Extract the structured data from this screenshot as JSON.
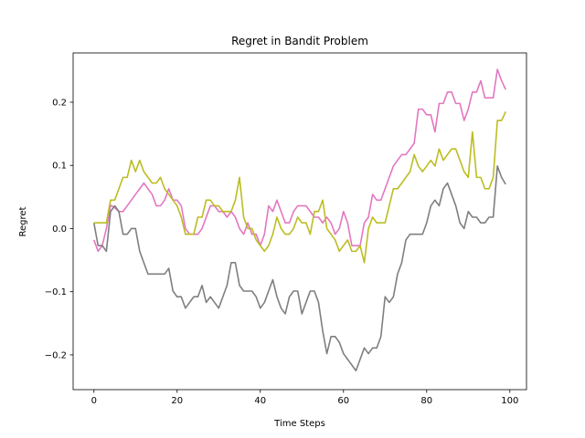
{
  "chart_data": {
    "type": "line",
    "title": "Regret in Bandit Problem",
    "xlabel": "Time Steps",
    "ylabel": "Regret",
    "xlim": [
      -5,
      104
    ],
    "ylim": [
      -0.255,
      0.278
    ],
    "xticks": [
      0,
      20,
      40,
      60,
      80,
      100
    ],
    "yticks": [
      -0.2,
      -0.1,
      0.0,
      0.1,
      0.2
    ],
    "ytick_labels": [
      "−0.2",
      "−0.1",
      "0.0",
      "0.1",
      "0.2"
    ],
    "grid": false,
    "legend": "none",
    "series": [
      {
        "color": "#e377c2",
        "values": [
          -0.018,
          -0.036,
          -0.027,
          0.0,
          0.037,
          0.033,
          0.027,
          0.027,
          0.036,
          0.045,
          0.054,
          0.063,
          0.072,
          0.063,
          0.054,
          0.036,
          0.036,
          0.045,
          0.063,
          0.045,
          0.045,
          0.036,
          0.0,
          -0.009,
          -0.009,
          -0.009,
          0.0,
          0.018,
          0.036,
          0.036,
          0.027,
          0.027,
          0.018,
          0.027,
          0.018,
          0.0,
          -0.009,
          0.009,
          -0.009,
          -0.009,
          -0.027,
          -0.009,
          0.036,
          0.027,
          0.045,
          0.027,
          0.009,
          0.009,
          0.027,
          0.036,
          0.036,
          0.036,
          0.027,
          0.018,
          0.018,
          0.009,
          0.018,
          0.009,
          -0.009,
          0.0,
          0.027,
          0.009,
          -0.027,
          -0.027,
          -0.027,
          0.009,
          0.018,
          0.054,
          0.045,
          0.045,
          0.063,
          0.081,
          0.099,
          0.108,
          0.117,
          0.117,
          0.126,
          0.135,
          0.189,
          0.189,
          0.18,
          0.18,
          0.153,
          0.198,
          0.198,
          0.216,
          0.216,
          0.198,
          0.198,
          0.171,
          0.189,
          0.216,
          0.216,
          0.234,
          0.207,
          0.207,
          0.207,
          0.252,
          0.234,
          0.22
        ]
      },
      {
        "color": "#7f7f7f",
        "values": [
          0.009,
          -0.027,
          -0.027,
          -0.036,
          0.027,
          0.036,
          0.027,
          -0.009,
          -0.009,
          0.0,
          0.0,
          -0.036,
          -0.054,
          -0.072,
          -0.072,
          -0.072,
          -0.072,
          -0.072,
          -0.063,
          -0.099,
          -0.108,
          -0.108,
          -0.126,
          -0.117,
          -0.108,
          -0.108,
          -0.09,
          -0.117,
          -0.108,
          -0.117,
          -0.126,
          -0.108,
          -0.09,
          -0.054,
          -0.054,
          -0.09,
          -0.099,
          -0.099,
          -0.099,
          -0.108,
          -0.126,
          -0.117,
          -0.099,
          -0.081,
          -0.108,
          -0.126,
          -0.135,
          -0.108,
          -0.099,
          -0.099,
          -0.135,
          -0.117,
          -0.099,
          -0.099,
          -0.117,
          -0.162,
          -0.198,
          -0.171,
          -0.171,
          -0.18,
          -0.198,
          -0.207,
          -0.216,
          -0.225,
          -0.207,
          -0.189,
          -0.198,
          -0.189,
          -0.189,
          -0.171,
          -0.108,
          -0.117,
          -0.108,
          -0.072,
          -0.054,
          -0.018,
          -0.009,
          -0.009,
          -0.009,
          -0.009,
          0.009,
          0.036,
          0.045,
          0.036,
          0.063,
          0.072,
          0.054,
          0.036,
          0.009,
          0.0,
          0.027,
          0.018,
          0.018,
          0.009,
          0.009,
          0.018,
          0.018,
          0.099,
          0.081,
          0.07
        ]
      },
      {
        "color": "#bcbd22",
        "values": [
          0.009,
          0.009,
          0.009,
          0.009,
          0.045,
          0.045,
          0.063,
          0.081,
          0.081,
          0.108,
          0.09,
          0.108,
          0.09,
          0.081,
          0.072,
          0.072,
          0.081,
          0.063,
          0.054,
          0.045,
          0.036,
          0.018,
          -0.009,
          -0.009,
          -0.009,
          0.018,
          0.018,
          0.045,
          0.045,
          0.036,
          0.036,
          0.027,
          0.027,
          0.027,
          0.045,
          0.081,
          0.018,
          0.0,
          0.0,
          -0.018,
          -0.027,
          -0.036,
          -0.027,
          -0.009,
          0.018,
          0.0,
          -0.009,
          -0.009,
          0.0,
          0.018,
          0.009,
          0.009,
          -0.009,
          0.027,
          0.027,
          0.045,
          0.0,
          -0.009,
          -0.018,
          -0.036,
          -0.027,
          -0.018,
          -0.036,
          -0.036,
          -0.027,
          -0.054,
          0.0,
          0.018,
          0.009,
          0.009,
          0.009,
          0.036,
          0.063,
          0.063,
          0.072,
          0.081,
          0.09,
          0.117,
          0.099,
          0.09,
          0.099,
          0.108,
          0.099,
          0.126,
          0.108,
          0.117,
          0.126,
          0.126,
          0.108,
          0.09,
          0.081,
          0.153,
          0.081,
          0.081,
          0.063,
          0.063,
          0.081,
          0.171,
          0.171,
          0.185
        ]
      }
    ]
  }
}
